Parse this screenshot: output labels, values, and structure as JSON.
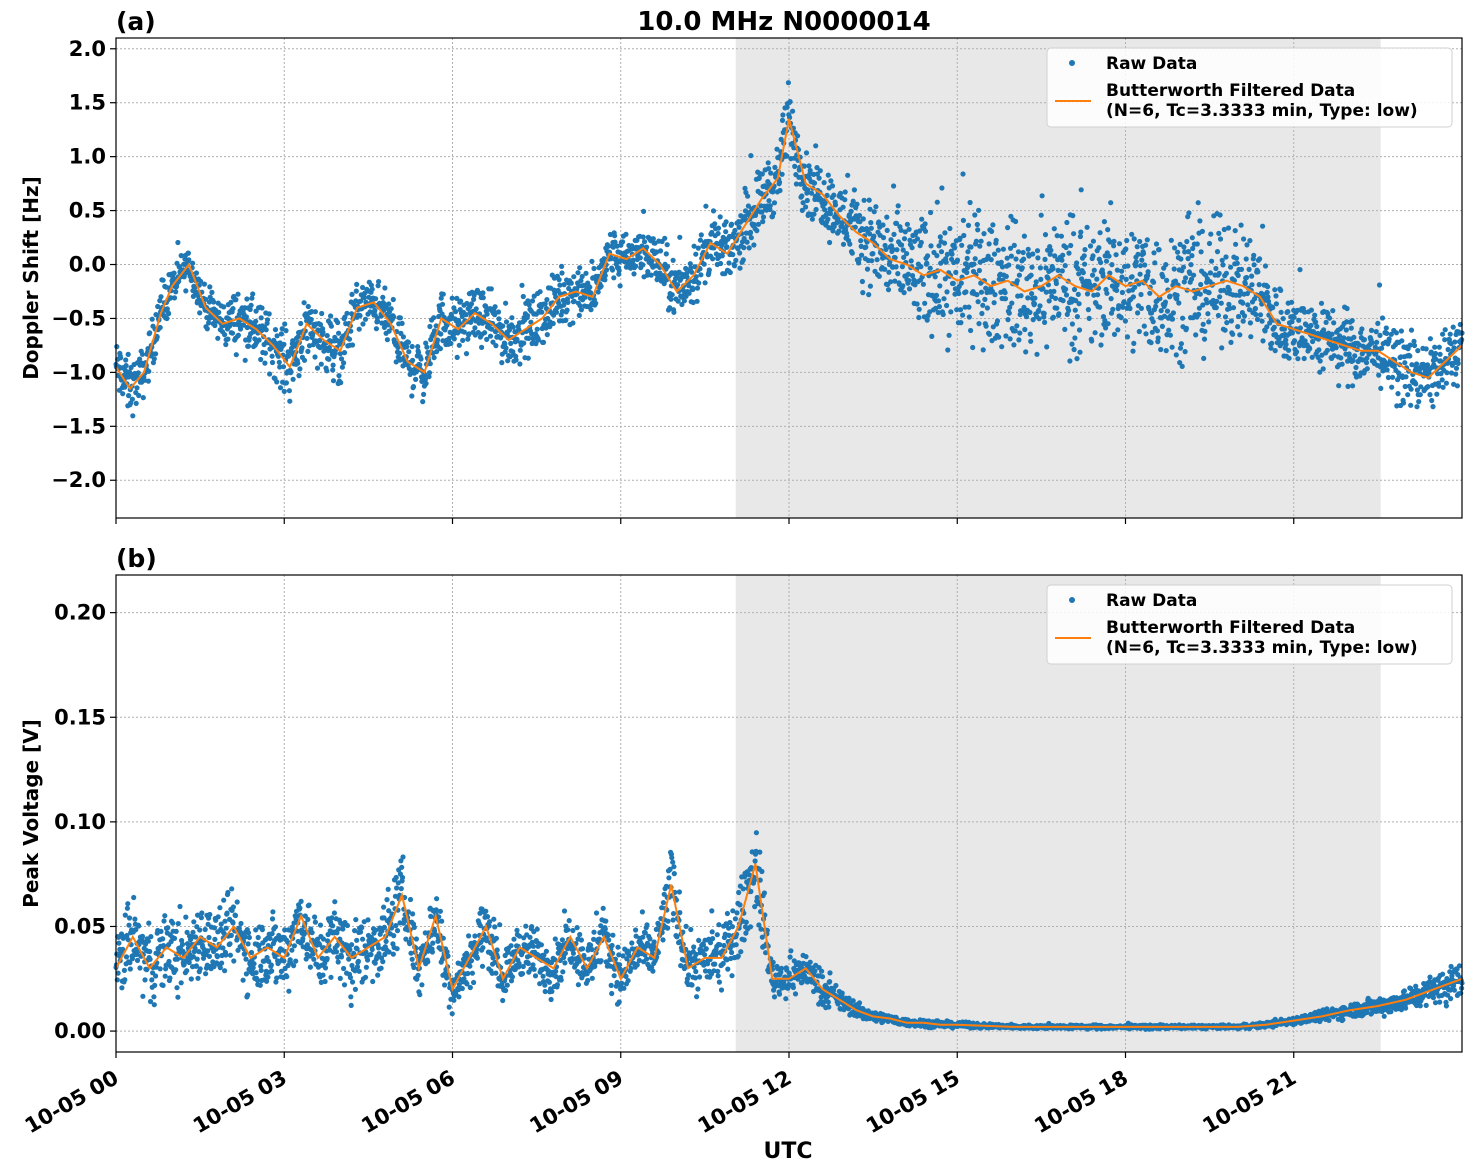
{
  "title": "10.0 MHz N0000014",
  "xlabel": "UTC",
  "x_ticks": [
    "10-05 00",
    "10-05 03",
    "10-05 06",
    "10-05 09",
    "10-05 12",
    "10-05 15",
    "10-05 18",
    "10-05 21"
  ],
  "colors": {
    "raw": "#1f77b4",
    "filtered": "#ff7f0e",
    "shade": "#e8e8e8",
    "grid": "#b0b0b0"
  },
  "chart_data": [
    {
      "type": "scatter",
      "panel_label": "(a)",
      "ylabel": "Doppler Shift [Hz]",
      "x_unit": "hours UTC since 10-05 00",
      "xlim": [
        0,
        24
      ],
      "ylim": [
        -2.35,
        2.1
      ],
      "yticks": [
        -2.0,
        -1.5,
        -1.0,
        -0.5,
        0.0,
        0.5,
        1.0,
        1.5,
        2.0
      ],
      "ytick_labels": [
        "−2.0",
        "−1.5",
        "−1.0",
        "−0.5",
        "0.0",
        "0.5",
        "1.0",
        "1.5",
        "2.0"
      ],
      "grid": true,
      "shaded_x_range": [
        11.05,
        22.55
      ],
      "legend_position": "top-right",
      "legend": [
        "Raw Data",
        "Butterworth Filtered Data",
        "(N=6, Tc=3.3333 min, Type: low)"
      ],
      "series": [
        {
          "name": "Butterworth Filtered Data",
          "kind": "line",
          "x": [
            0,
            0.25,
            0.5,
            0.8,
            1.0,
            1.3,
            1.6,
            1.9,
            2.2,
            2.5,
            2.8,
            3.1,
            3.4,
            3.7,
            4.0,
            4.3,
            4.6,
            4.9,
            5.2,
            5.5,
            5.8,
            6.1,
            6.4,
            6.7,
            7.0,
            7.3,
            7.6,
            7.9,
            8.2,
            8.5,
            8.8,
            9.1,
            9.4,
            9.7,
            10.0,
            10.3,
            10.6,
            10.9,
            11.2,
            11.5,
            11.8,
            12.0,
            12.3,
            12.6,
            12.9,
            13.2,
            13.5,
            13.8,
            14.1,
            14.4,
            14.7,
            15.0,
            15.3,
            15.6,
            15.9,
            16.2,
            16.5,
            16.8,
            17.1,
            17.4,
            17.7,
            18.0,
            18.3,
            18.6,
            18.9,
            19.2,
            19.5,
            19.8,
            20.1,
            20.4,
            20.7,
            21.0,
            21.3,
            21.6,
            21.9,
            22.2,
            22.5,
            22.8,
            23.1,
            23.4,
            23.7,
            24.0
          ],
          "y": [
            -0.95,
            -1.15,
            -1.0,
            -0.45,
            -0.2,
            0.0,
            -0.4,
            -0.55,
            -0.5,
            -0.6,
            -0.75,
            -0.95,
            -0.55,
            -0.7,
            -0.8,
            -0.4,
            -0.35,
            -0.55,
            -0.9,
            -1.0,
            -0.5,
            -0.6,
            -0.45,
            -0.55,
            -0.7,
            -0.6,
            -0.5,
            -0.3,
            -0.25,
            -0.3,
            0.1,
            0.05,
            0.15,
            0.0,
            -0.25,
            -0.1,
            0.2,
            0.1,
            0.35,
            0.6,
            0.8,
            1.35,
            0.75,
            0.65,
            0.45,
            0.3,
            0.2,
            0.05,
            0.0,
            -0.1,
            -0.05,
            -0.15,
            -0.1,
            -0.2,
            -0.15,
            -0.25,
            -0.2,
            -0.1,
            -0.2,
            -0.25,
            -0.1,
            -0.2,
            -0.15,
            -0.3,
            -0.2,
            -0.25,
            -0.2,
            -0.15,
            -0.2,
            -0.3,
            -0.55,
            -0.6,
            -0.65,
            -0.7,
            -0.75,
            -0.8,
            -0.8,
            -0.9,
            -1.0,
            -1.05,
            -0.9,
            -0.75
          ]
        },
        {
          "name": "Raw Data",
          "kind": "scatter",
          "spread_plus_minus": [
            0.3,
            0.3,
            0.25,
            0.25,
            0.2,
            0.2,
            0.2,
            0.25,
            0.3,
            0.3,
            0.3,
            0.35,
            0.3,
            0.3,
            0.3,
            0.25,
            0.25,
            0.3,
            0.3,
            0.3,
            0.3,
            0.3,
            0.25,
            0.3,
            0.3,
            0.3,
            0.3,
            0.3,
            0.25,
            0.25,
            0.25,
            0.25,
            0.25,
            0.3,
            0.3,
            0.3,
            0.3,
            0.3,
            0.35,
            0.35,
            0.35,
            0.4,
            0.35,
            0.35,
            0.35,
            0.4,
            0.5,
            0.55,
            0.6,
            0.6,
            0.65,
            0.65,
            0.65,
            0.65,
            0.65,
            0.65,
            0.65,
            0.65,
            0.65,
            0.65,
            0.65,
            0.65,
            0.65,
            0.65,
            0.65,
            0.65,
            0.65,
            0.6,
            0.6,
            0.6,
            0.4,
            0.35,
            0.35,
            0.35,
            0.35,
            0.35,
            0.35,
            0.35,
            0.35,
            0.35,
            0.35,
            0.35
          ]
        }
      ]
    },
    {
      "type": "scatter",
      "panel_label": "(b)",
      "ylabel": "Peak Voltage [V]",
      "x_unit": "hours UTC since 10-05 00",
      "xlim": [
        0,
        24
      ],
      "ylim": [
        -0.01,
        0.218
      ],
      "yticks": [
        0.0,
        0.05,
        0.1,
        0.15,
        0.2
      ],
      "ytick_labels": [
        "0.00",
        "0.05",
        "0.10",
        "0.15",
        "0.20"
      ],
      "grid": true,
      "shaded_x_range": [
        11.05,
        22.55
      ],
      "legend_position": "top-right",
      "legend": [
        "Raw Data",
        "Butterworth Filtered Data",
        "(N=6, Tc=3.3333 min, Type: low)"
      ],
      "series": [
        {
          "name": "Butterworth Filtered Data",
          "kind": "line",
          "x": [
            0,
            0.3,
            0.6,
            0.9,
            1.2,
            1.5,
            1.8,
            2.1,
            2.4,
            2.7,
            3.0,
            3.3,
            3.6,
            3.9,
            4.2,
            4.5,
            4.8,
            5.1,
            5.4,
            5.7,
            6.0,
            6.3,
            6.6,
            6.9,
            7.2,
            7.5,
            7.8,
            8.1,
            8.4,
            8.7,
            9.0,
            9.3,
            9.6,
            9.9,
            10.2,
            10.5,
            10.8,
            11.1,
            11.4,
            11.7,
            12.0,
            12.3,
            12.6,
            12.9,
            13.2,
            13.5,
            13.8,
            14.1,
            14.4,
            14.7,
            15.0,
            16.0,
            17.0,
            18.0,
            19.0,
            20.0,
            20.5,
            21.0,
            21.5,
            22.0,
            22.5,
            23.0,
            23.5,
            24.0
          ],
          "y": [
            0.03,
            0.045,
            0.03,
            0.04,
            0.035,
            0.045,
            0.04,
            0.05,
            0.035,
            0.04,
            0.035,
            0.055,
            0.035,
            0.045,
            0.035,
            0.04,
            0.045,
            0.065,
            0.03,
            0.055,
            0.02,
            0.035,
            0.05,
            0.025,
            0.04,
            0.035,
            0.03,
            0.045,
            0.03,
            0.045,
            0.025,
            0.04,
            0.035,
            0.07,
            0.03,
            0.035,
            0.035,
            0.05,
            0.08,
            0.025,
            0.025,
            0.03,
            0.02,
            0.015,
            0.01,
            0.007,
            0.006,
            0.004,
            0.004,
            0.003,
            0.003,
            0.002,
            0.002,
            0.002,
            0.002,
            0.002,
            0.003,
            0.005,
            0.007,
            0.01,
            0.012,
            0.015,
            0.02,
            0.025
          ]
        },
        {
          "name": "Raw Data",
          "kind": "scatter",
          "spread_plus_minus": [
            0.02,
            0.02,
            0.02,
            0.02,
            0.02,
            0.02,
            0.02,
            0.02,
            0.02,
            0.02,
            0.02,
            0.02,
            0.02,
            0.02,
            0.02,
            0.02,
            0.02,
            0.022,
            0.015,
            0.018,
            0.012,
            0.015,
            0.018,
            0.012,
            0.015,
            0.015,
            0.015,
            0.015,
            0.015,
            0.015,
            0.015,
            0.015,
            0.015,
            0.02,
            0.015,
            0.015,
            0.015,
            0.02,
            0.025,
            0.01,
            0.01,
            0.01,
            0.008,
            0.006,
            0.004,
            0.003,
            0.002,
            0.002,
            0.002,
            0.0015,
            0.0015,
            0.001,
            0.001,
            0.001,
            0.001,
            0.001,
            0.0015,
            0.002,
            0.003,
            0.004,
            0.005,
            0.006,
            0.008,
            0.01
          ]
        }
      ]
    }
  ]
}
